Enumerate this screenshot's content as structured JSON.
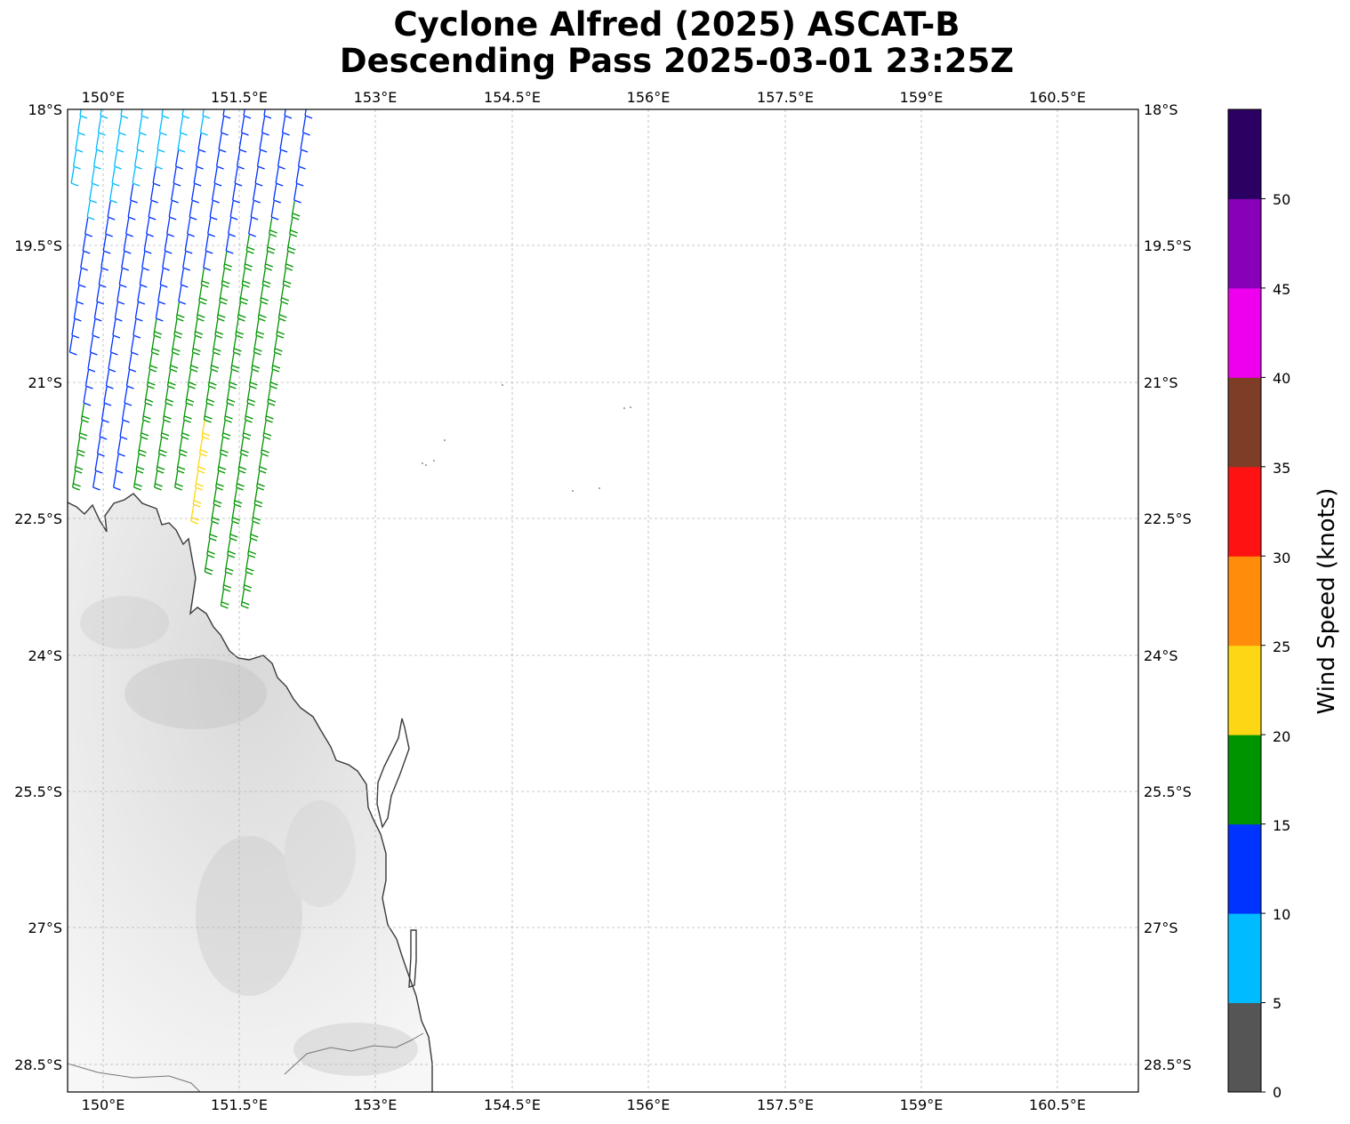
{
  "title_line1": "Cyclone Alfred (2025) ASCAT-B",
  "title_line2": "Descending Pass 2025-03-01 23:25Z",
  "map": {
    "lon_labels": [
      "150°E",
      "151.5°E",
      "153°E",
      "154.5°E",
      "156°E",
      "157.5°E",
      "159°E",
      "160.5°E"
    ],
    "lat_labels": [
      "18°S",
      "19.5°S",
      "21°S",
      "22.5°S",
      "24°S",
      "25.5°S",
      "27°S",
      "28.5°S"
    ],
    "coastline_color": "#3a3a3a",
    "land_color": "#eeeeee",
    "grid": true
  },
  "colorbar": {
    "label": "Wind Speed (knots)",
    "ticks": [
      "0",
      "5",
      "10",
      "15",
      "20",
      "25",
      "30",
      "35",
      "40",
      "45",
      "50"
    ],
    "colors": [
      "#555555",
      "#00bbff",
      "#0033ff",
      "#009500",
      "#fdd714",
      "#ff8c0a",
      "#ff1212",
      "#7d3d27",
      "#ee00ee",
      "#8800b8",
      "#2b0063"
    ]
  }
}
